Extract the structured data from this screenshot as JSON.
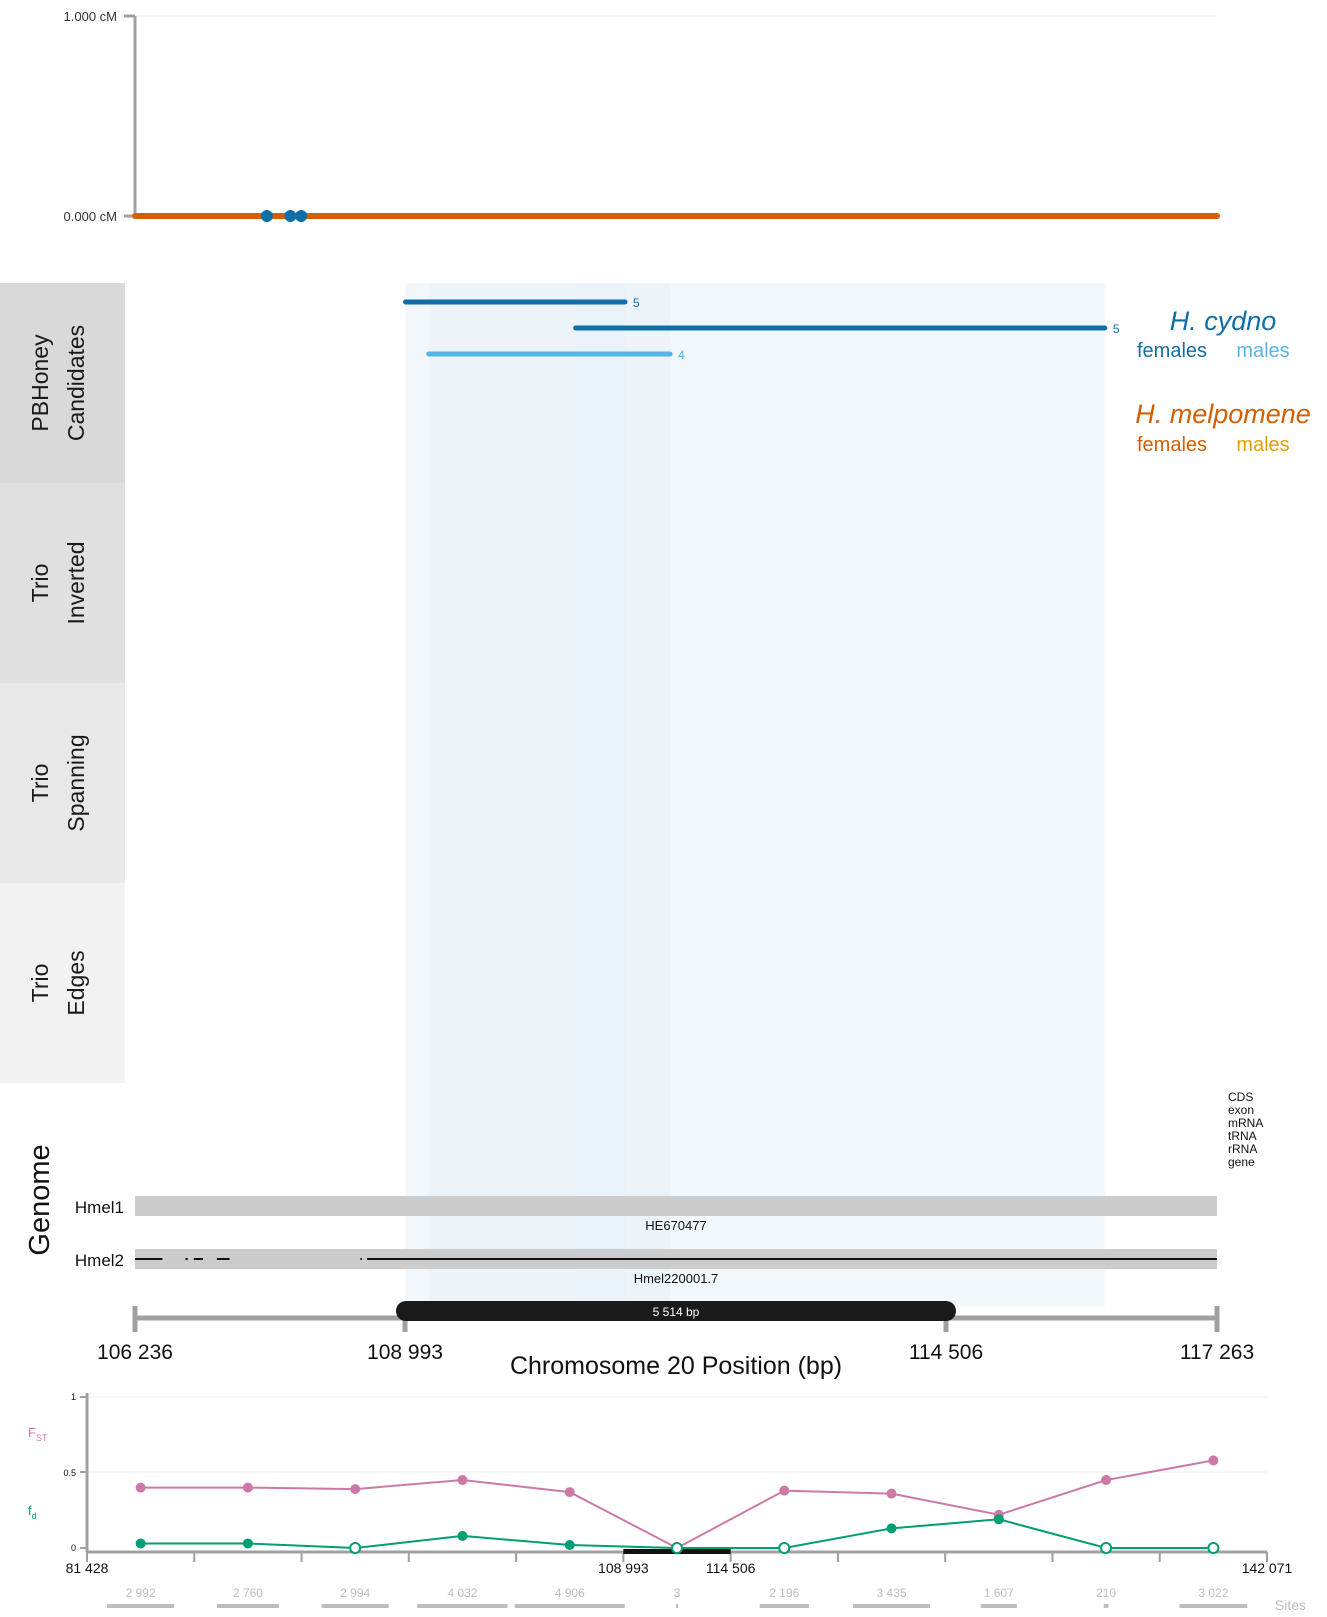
{
  "colors": {
    "cydno_female": "#0e6fa8",
    "cydno_male": "#56b4e9",
    "melpomene_female": "#d55e00",
    "melpomene_male": "#e69f00",
    "fst": "#cc79a7",
    "fd": "#009e73",
    "strip_pbhoney": "#d9d9d9",
    "strip_inverted": "#e0e0e0",
    "strip_spanning": "#e8e8e8",
    "strip_edges": "#f2f2f2",
    "assembly": "#cccccc",
    "shade": "#e8f1f8"
  },
  "map_panel": {
    "y_ticks": [
      "1.000 cM",
      "0.000 cM"
    ],
    "y_range": [
      0,
      1
    ],
    "x_range": [
      106236,
      117263
    ],
    "line_value": 0,
    "markers": [
      {
        "x": 107580,
        "y": 0
      },
      {
        "x": 107820,
        "y": 0
      },
      {
        "x": 107930,
        "y": 0
      }
    ]
  },
  "legend": {
    "cydno": {
      "name": "H. cydno",
      "females": "females",
      "males": "males"
    },
    "melpomene": {
      "name": "H. melpomene",
      "females": "females",
      "males": "males"
    }
  },
  "track_labels": [
    {
      "line1": "PBHoney",
      "line2": "Candidates"
    },
    {
      "line1": "Trio",
      "line2": "Inverted"
    },
    {
      "line1": "Trio",
      "line2": "Spanning"
    },
    {
      "line1": "Trio",
      "line2": "Edges"
    }
  ],
  "candidates": [
    {
      "start": 108993,
      "end": 111230,
      "count": "5",
      "group": "cydno_female"
    },
    {
      "start": 110727,
      "end": 116120,
      "count": "5",
      "group": "cydno_female"
    },
    {
      "start": 109230,
      "end": 111690,
      "count": "4",
      "group": "cydno_male"
    }
  ],
  "shaded_regions": [
    {
      "start": 108993,
      "end": 111230
    },
    {
      "start": 110727,
      "end": 116120
    },
    {
      "start": 109230,
      "end": 111690
    }
  ],
  "genome": {
    "title": "Genome",
    "feature_legend": [
      "CDS",
      "exon",
      "mRNA",
      "tRNA",
      "rRNA",
      "gene"
    ],
    "assemblies": [
      {
        "name": "Hmel1",
        "scaffold": "HE670477"
      },
      {
        "name": "Hmel2",
        "scaffold": "Hmel220001.7"
      }
    ],
    "hmel2_segments": [
      [
        106236,
        106516
      ],
      [
        106750,
        106773
      ],
      [
        106835,
        106929
      ],
      [
        107070,
        107200
      ],
      [
        108533,
        108548
      ],
      [
        108601,
        117263
      ]
    ]
  },
  "axis": {
    "title": "Chromosome 20 Position (bp)",
    "ticks": [
      {
        "value": 106236,
        "label": "106 236"
      },
      {
        "value": 108993,
        "label": "108 993"
      },
      {
        "value": 114506,
        "label": "114 506"
      },
      {
        "value": 117263,
        "label": "117 263"
      }
    ],
    "inversion_label": "5 514 bp"
  },
  "chart_data": {
    "type": "line",
    "x_range": [
      81428,
      142071
    ],
    "ylim": [
      0,
      1
    ],
    "y_ticks": [
      "0",
      "0.5",
      "1"
    ],
    "x_tick_labels": [
      "81 428",
      "108 993",
      "114 506",
      "142 071"
    ],
    "highlight": {
      "start": 108993,
      "end": 114506
    },
    "sites_label": "Sites",
    "windows": [
      {
        "x": 84185,
        "sites": "2 992",
        "fst": 0.4,
        "fd": 0.03,
        "fd_open": false
      },
      {
        "x": 89698,
        "sites": "2 760",
        "fst": 0.4,
        "fd": 0.03,
        "fd_open": false
      },
      {
        "x": 95211,
        "sites": "2 994",
        "fst": 0.39,
        "fd": 0.0,
        "fd_open": true
      },
      {
        "x": 100724,
        "sites": "4 032",
        "fst": 0.45,
        "fd": 0.08,
        "fd_open": false
      },
      {
        "x": 106237,
        "sites": "4 906",
        "fst": 0.37,
        "fd": 0.02,
        "fd_open": false
      },
      {
        "x": 111750,
        "sites": "3",
        "fst": 0.0,
        "fd": 0.0,
        "fd_open": true
      },
      {
        "x": 117263,
        "sites": "2 196",
        "fst": 0.38,
        "fd": 0.0,
        "fd_open": true
      },
      {
        "x": 122776,
        "sites": "3 435",
        "fst": 0.36,
        "fd": 0.13,
        "fd_open": false
      },
      {
        "x": 128289,
        "sites": "1 607",
        "fst": 0.22,
        "fd": 0.19,
        "fd_open": false
      },
      {
        "x": 133802,
        "sites": "210",
        "fst": 0.45,
        "fd": 0.0,
        "fd_open": true
      },
      {
        "x": 139315,
        "sites": "3 022",
        "fst": 0.58,
        "fd": 0.0,
        "fd_open": true
      }
    ],
    "series": [
      {
        "key": "fst",
        "label_main": "F",
        "label_sub": "ST"
      },
      {
        "key": "fd",
        "label_main": "f",
        "label_sub": "d"
      }
    ]
  }
}
